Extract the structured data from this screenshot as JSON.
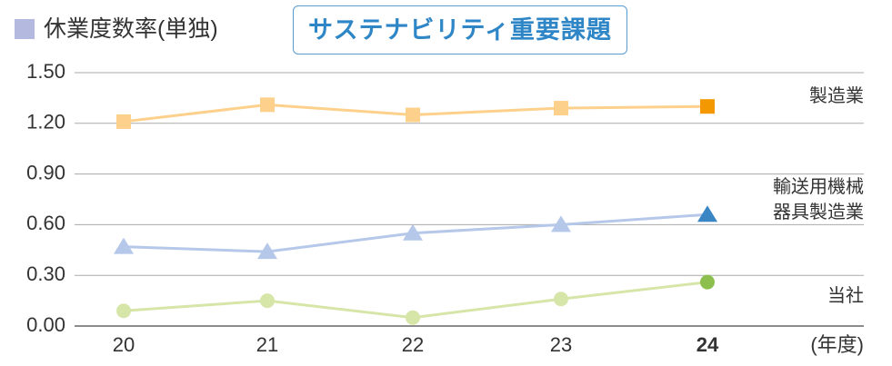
{
  "chart_data": {
    "type": "line",
    "title": "休業度数率(単独)",
    "title_marker_color": "#b4b9e0",
    "badge": "サステナビリティ重要課題",
    "x_label": "(年度)",
    "categories": [
      "20",
      "21",
      "22",
      "23",
      "24"
    ],
    "ylim": [
      0,
      1.5
    ],
    "yticks": [
      {
        "value": 0,
        "label": "0.00"
      },
      {
        "value": 0.3,
        "label": "0.30"
      },
      {
        "value": 0.6,
        "label": "0.60"
      },
      {
        "value": 0.9,
        "label": "0.90"
      },
      {
        "value": 1.2,
        "label": "1.20"
      },
      {
        "value": 1.5,
        "label": "1.50"
      }
    ],
    "grid": true,
    "series": [
      {
        "name": "製造業",
        "color": "#fdd08c",
        "last_color": "#f39800",
        "marker": "square",
        "values": [
          1.21,
          1.31,
          1.25,
          1.29,
          1.3
        ]
      },
      {
        "name": "輸送用機械器具製造業",
        "color": "#b5c8ea",
        "last_color": "#3a86c4",
        "marker": "triangle",
        "values": [
          0.47,
          0.44,
          0.55,
          0.6,
          0.66
        ]
      },
      {
        "name": "当社",
        "color": "#d6e5a8",
        "last_color": "#8cbf4e",
        "marker": "circle",
        "values": [
          0.09,
          0.15,
          0.05,
          0.16,
          0.26
        ]
      }
    ]
  }
}
